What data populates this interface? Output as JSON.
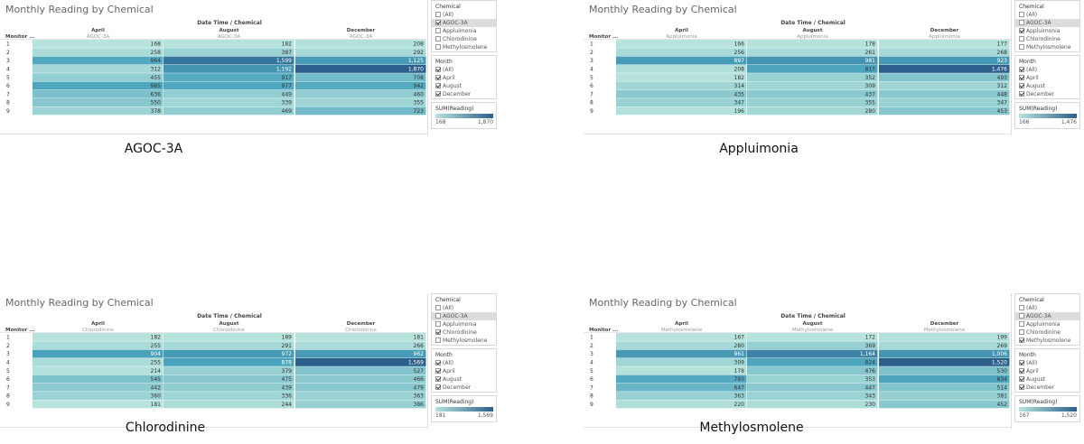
{
  "caption_texts": [
    "AGOC-3A",
    "Appluimonia",
    "Chlorodinine",
    "Methylosmolene"
  ],
  "header": {
    "title": "Monthly Reading by Chemical",
    "column_group_label": "Date Time / Chemical",
    "row_header": "Monitor ..."
  },
  "filters": {
    "chemical_title": "Chemical",
    "chemical_options": [
      "(All)",
      "AGOC-3A",
      "Appluimonia",
      "Chlorodinine",
      "Methylosmolene"
    ],
    "month_title": "Month",
    "month_options": [
      "(All)",
      "April",
      "August",
      "December"
    ],
    "legend_title": "SUM(Reading)"
  },
  "colors": {
    "low": "#b7e3dc",
    "mid": "#4ba4bd",
    "high": "#2c5f8c"
  },
  "chart_data": [
    {
      "type": "heatmap",
      "title": "Monthly Reading by Chemical",
      "caption": "AGOC-3A",
      "chemical": "AGOC-3A",
      "selected_chemical_index": 1,
      "months": [
        "April",
        "August",
        "December"
      ],
      "monitors": [
        "1",
        "2",
        "3",
        "4",
        "5",
        "6",
        "7",
        "8",
        "9"
      ],
      "values": [
        [
          168,
          182,
          208
        ],
        [
          258,
          387,
          292
        ],
        [
          964,
          1599,
          1125
        ],
        [
          312,
          1192,
          1870
        ],
        [
          455,
          917,
          708
        ],
        [
          985,
          977,
          942
        ],
        [
          636,
          449,
          460
        ],
        [
          550,
          339,
          355
        ],
        [
          378,
          469,
          723
        ]
      ],
      "value_labels": [
        [
          "168",
          "182",
          "208"
        ],
        [
          "258",
          "387",
          "292"
        ],
        [
          "964",
          "1,599",
          "1,125"
        ],
        [
          "312",
          "1,192",
          "1,870"
        ],
        [
          "455",
          "917",
          "708"
        ],
        [
          "985",
          "977",
          "942"
        ],
        [
          "636",
          "449",
          "460"
        ],
        [
          "550",
          "339",
          "355"
        ],
        [
          "378",
          "469",
          "723"
        ]
      ],
      "legend_min": "168",
      "legend_max": "1,870"
    },
    {
      "type": "heatmap",
      "title": "Monthly Reading by Chemical",
      "caption": "Appluimonia",
      "chemical": "Appluimonia",
      "selected_chemical_index": 2,
      "months": [
        "April",
        "August",
        "December"
      ],
      "monitors": [
        "1",
        "2",
        "3",
        "4",
        "5",
        "6",
        "7",
        "8",
        "9"
      ],
      "values": [
        [
          166,
          178,
          177
        ],
        [
          256,
          261,
          268
        ],
        [
          897,
          981,
          923
        ],
        [
          208,
          817,
          1476
        ],
        [
          182,
          352,
          493
        ],
        [
          314,
          309,
          312
        ],
        [
          435,
          437,
          448
        ],
        [
          347,
          355,
          347
        ],
        [
          196,
          280,
          453
        ]
      ],
      "value_labels": [
        [
          "166",
          "178",
          "177"
        ],
        [
          "256",
          "261",
          "268"
        ],
        [
          "897",
          "981",
          "923"
        ],
        [
          "208",
          "817",
          "1,476"
        ],
        [
          "182",
          "352",
          "493"
        ],
        [
          "314",
          "309",
          "312"
        ],
        [
          "435",
          "437",
          "448"
        ],
        [
          "347",
          "355",
          "347"
        ],
        [
          "196",
          "280",
          "453"
        ]
      ],
      "legend_min": "166",
      "legend_max": "1,476"
    },
    {
      "type": "heatmap",
      "title": "Monthly Reading by Chemical",
      "caption": "Chlorodinine",
      "chemical": "Chlorodinine",
      "selected_chemical_index": 3,
      "months": [
        "April",
        "August",
        "December"
      ],
      "monitors": [
        "1",
        "2",
        "3",
        "4",
        "5",
        "6",
        "7",
        "8",
        "9"
      ],
      "values": [
        [
          182,
          189,
          181
        ],
        [
          255,
          291,
          266
        ],
        [
          904,
          972,
          962
        ],
        [
          255,
          878,
          1569
        ],
        [
          214,
          379,
          527
        ],
        [
          545,
          475,
          466
        ],
        [
          442,
          439,
          479
        ],
        [
          360,
          336,
          363
        ],
        [
          181,
          244,
          386
        ]
      ],
      "value_labels": [
        [
          "182",
          "189",
          "181"
        ],
        [
          "255",
          "291",
          "266"
        ],
        [
          "904",
          "972",
          "962"
        ],
        [
          "255",
          "878",
          "1,569"
        ],
        [
          "214",
          "379",
          "527"
        ],
        [
          "545",
          "475",
          "466"
        ],
        [
          "442",
          "439",
          "479"
        ],
        [
          "360",
          "336",
          "363"
        ],
        [
          "181",
          "244",
          "386"
        ]
      ],
      "legend_min": "181",
      "legend_max": "1,569"
    },
    {
      "type": "heatmap",
      "title": "Monthly Reading by Chemical",
      "caption": "Methylosmolene",
      "chemical": "Methylosmolene",
      "selected_chemical_index": 4,
      "months": [
        "April",
        "August",
        "December"
      ],
      "monitors": [
        "1",
        "2",
        "3",
        "4",
        "5",
        "6",
        "7",
        "8",
        "9"
      ],
      "values": [
        [
          167,
          172,
          199
        ],
        [
          280,
          369,
          269
        ],
        [
          961,
          1164,
          1006
        ],
        [
          309,
          824,
          1520
        ],
        [
          178,
          476,
          530
        ],
        [
          793,
          353,
          834
        ],
        [
          647,
          447,
          514
        ],
        [
          363,
          343,
          381
        ],
        [
          220,
          230,
          452
        ]
      ],
      "value_labels": [
        [
          "167",
          "172",
          "199"
        ],
        [
          "280",
          "369",
          "269"
        ],
        [
          "961",
          "1,164",
          "1,006"
        ],
        [
          "309",
          "824",
          "1,520"
        ],
        [
          "178",
          "476",
          "530"
        ],
        [
          "793",
          "353",
          "834"
        ],
        [
          "647",
          "447",
          "514"
        ],
        [
          "363",
          "343",
          "381"
        ],
        [
          "220",
          "230",
          "452"
        ]
      ],
      "legend_min": "167",
      "legend_max": "1,520"
    }
  ]
}
